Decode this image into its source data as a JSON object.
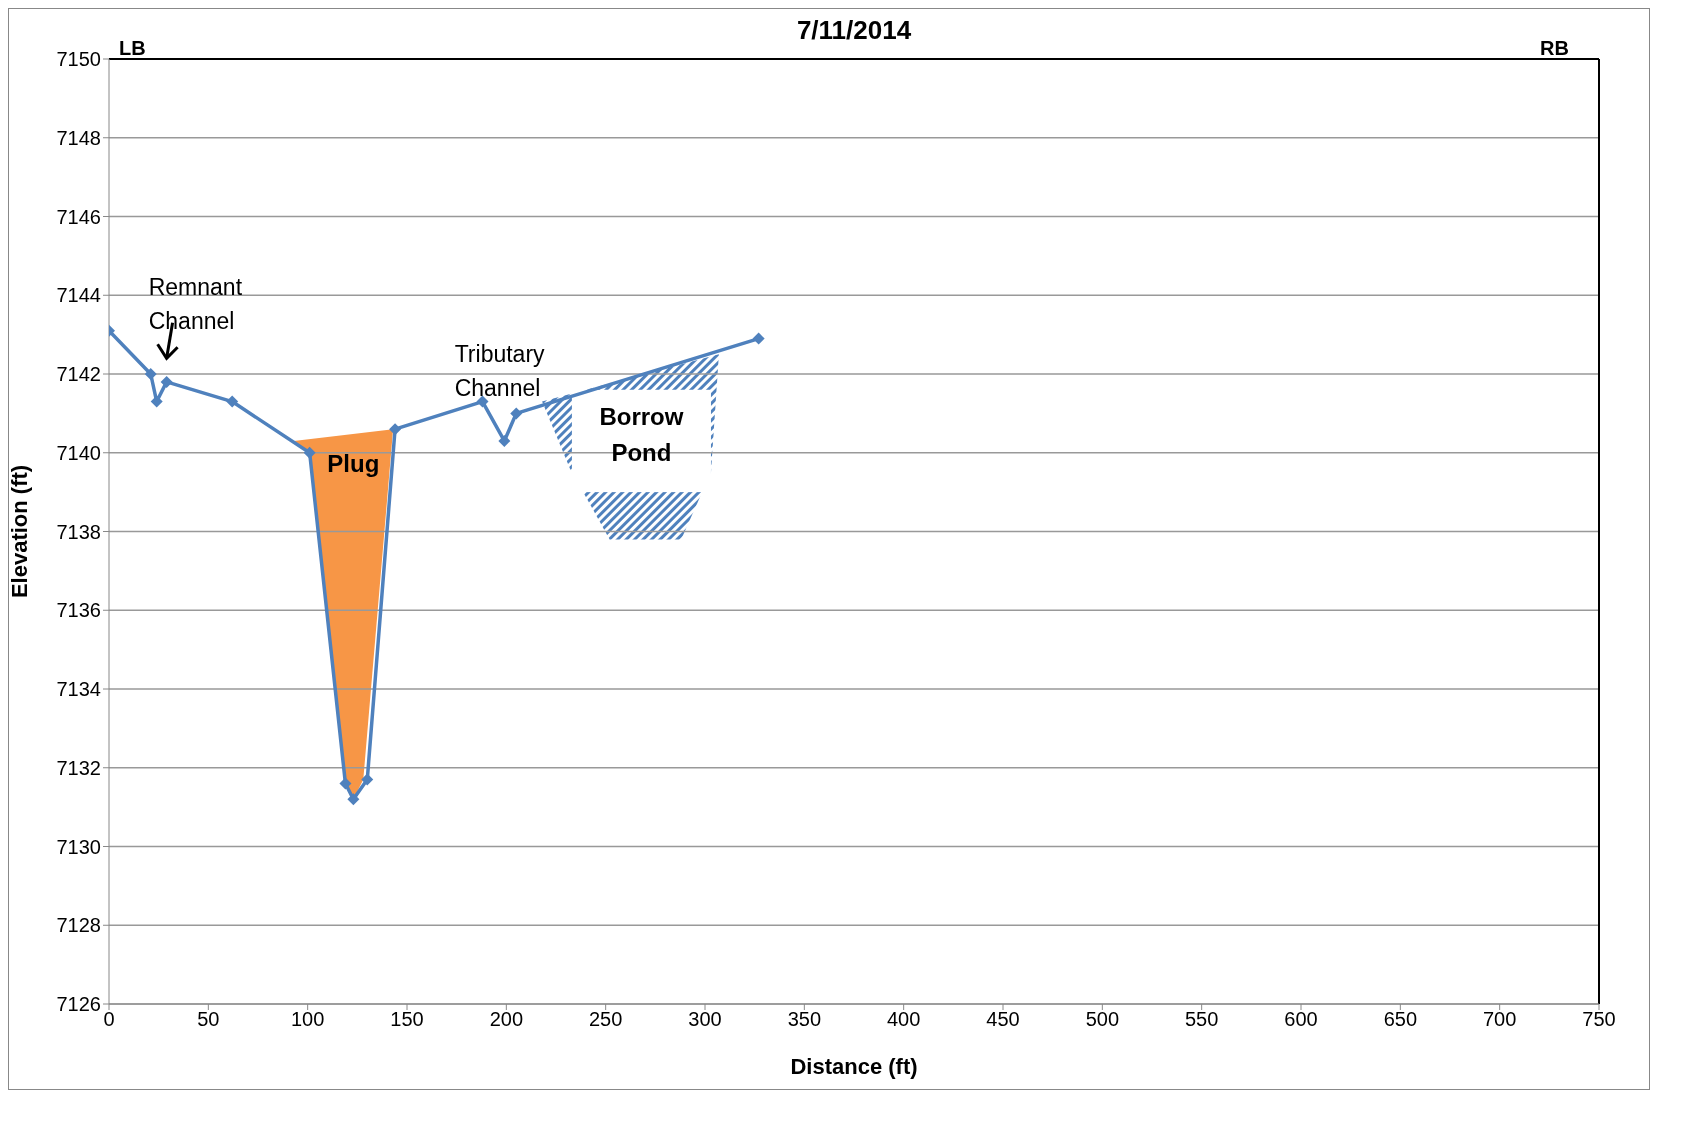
{
  "chart_data": {
    "type": "line",
    "title": "7/11/2014",
    "xlabel": "Distance (ft)",
    "ylabel": "Elevation (ft)",
    "x": [
      0,
      21,
      24,
      29,
      62,
      101,
      119,
      123,
      130,
      144,
      188,
      199,
      205,
      327
    ],
    "series": [
      {
        "color": "#4f81bd",
        "values": [
          7143.1,
          7142.0,
          7141.3,
          7141.8,
          7141.3,
          7140.0,
          7131.6,
          7131.2,
          7131.7,
          7140.6,
          7141.3,
          7140.3,
          7141.0,
          7142.9
        ]
      }
    ],
    "xlim": [
      0,
      750
    ],
    "xticks": [
      0,
      50,
      100,
      150,
      200,
      250,
      300,
      350,
      400,
      450,
      500,
      550,
      600,
      650,
      700,
      750
    ],
    "ylim": [
      7126,
      7150
    ],
    "yticks": [
      7126,
      7128,
      7130,
      7132,
      7134,
      7136,
      7138,
      7140,
      7142,
      7144,
      7146,
      7148,
      7150
    ],
    "grid": "y",
    "marker": "diamond",
    "line_style": "solid",
    "legend": false,
    "annotations": [
      "LB",
      "RB",
      "Plug",
      "Borrow Pond",
      "Remnant Channel",
      "Tributary Channel"
    ]
  }
}
